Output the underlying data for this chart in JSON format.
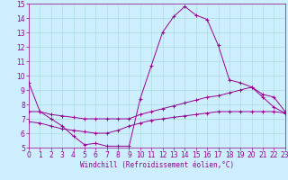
{
  "xlabel": "Windchill (Refroidissement éolien,°C)",
  "ylabel": "",
  "xlim": [
    0,
    23
  ],
  "ylim": [
    5,
    15
  ],
  "yticks": [
    5,
    6,
    7,
    8,
    9,
    10,
    11,
    12,
    13,
    14,
    15
  ],
  "xticks": [
    0,
    1,
    2,
    3,
    4,
    5,
    6,
    7,
    8,
    9,
    10,
    11,
    12,
    13,
    14,
    15,
    16,
    17,
    18,
    19,
    20,
    21,
    22,
    23
  ],
  "line_color": "#990099",
  "bg_color": "#cceeff",
  "grid_color": "#aadddd",
  "line1_x": [
    0,
    1,
    2,
    3,
    4,
    5,
    6,
    7,
    8,
    9,
    10,
    11,
    12,
    13,
    14,
    15,
    16,
    17,
    18,
    19,
    20,
    21,
    22,
    23
  ],
  "line1_y": [
    9.5,
    7.5,
    7.0,
    6.5,
    5.8,
    5.2,
    5.3,
    5.1,
    5.1,
    5.1,
    8.4,
    10.7,
    13.0,
    14.1,
    14.8,
    14.2,
    13.9,
    12.1,
    9.7,
    9.5,
    9.2,
    8.7,
    8.5,
    7.5
  ],
  "line2_x": [
    0,
    1,
    2,
    3,
    4,
    5,
    6,
    7,
    8,
    9,
    10,
    11,
    12,
    13,
    14,
    15,
    16,
    17,
    18,
    19,
    20,
    21,
    22,
    23
  ],
  "line2_y": [
    7.5,
    7.5,
    7.3,
    7.2,
    7.1,
    7.0,
    7.0,
    7.0,
    7.0,
    7.0,
    7.3,
    7.5,
    7.7,
    7.9,
    8.1,
    8.3,
    8.5,
    8.6,
    8.8,
    9.0,
    9.2,
    8.5,
    7.8,
    7.4
  ],
  "line3_x": [
    0,
    1,
    2,
    3,
    4,
    5,
    6,
    7,
    8,
    9,
    10,
    11,
    12,
    13,
    14,
    15,
    16,
    17,
    18,
    19,
    20,
    21,
    22,
    23
  ],
  "line3_y": [
    6.8,
    6.7,
    6.5,
    6.3,
    6.2,
    6.1,
    6.0,
    6.0,
    6.2,
    6.5,
    6.7,
    6.9,
    7.0,
    7.1,
    7.2,
    7.3,
    7.4,
    7.5,
    7.5,
    7.5,
    7.5,
    7.5,
    7.5,
    7.4
  ],
  "tick_fontsize": 5.5,
  "xlabel_fontsize": 5.5,
  "lw": 0.7,
  "ms": 2.5
}
